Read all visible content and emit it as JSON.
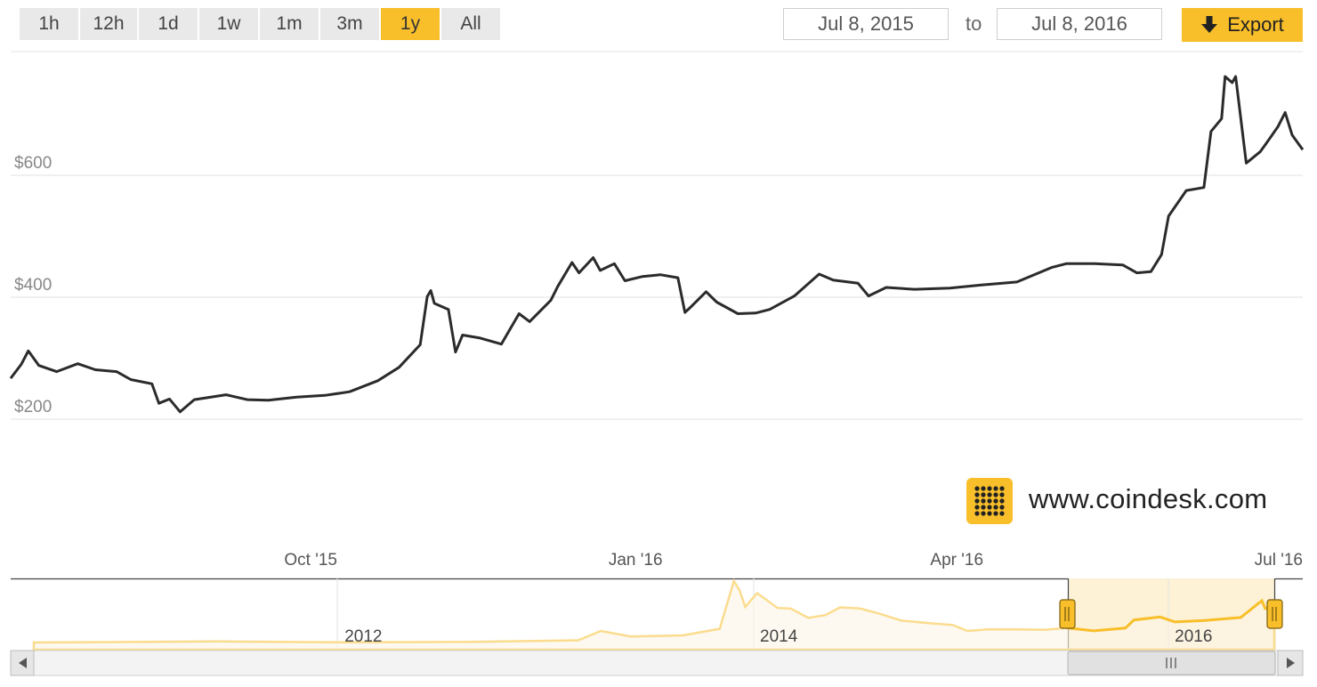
{
  "ranges": [
    {
      "label": "1h",
      "active": false
    },
    {
      "label": "12h",
      "active": false
    },
    {
      "label": "1d",
      "active": false
    },
    {
      "label": "1w",
      "active": false
    },
    {
      "label": "1m",
      "active": false
    },
    {
      "label": "3m",
      "active": false
    },
    {
      "label": "1y",
      "active": true
    },
    {
      "label": "All",
      "active": false
    }
  ],
  "date_from": "Jul 8, 2015",
  "date_to_label": "to",
  "date_to": "Jul 8, 2016",
  "export_label": "Export",
  "watermark": "www.coindesk.com",
  "colors": {
    "accent": "#f8bf2a",
    "line": "#2b2b2b",
    "grid": "#e0e0e0",
    "nav_fill": "#fdf1d6"
  },
  "icons": {
    "export": "download-arrow-icon",
    "logo": "coindesk-logo-icon",
    "left": "scroll-left-icon",
    "right": "scroll-right-icon"
  },
  "chart_data": {
    "type": "line",
    "x_range": [
      "2015-07-08",
      "2016-07-08"
    ],
    "ylim": [
      100,
      800
    ],
    "yticks": [
      {
        "label": "$200",
        "value": 200
      },
      {
        "label": "$400",
        "value": 400
      },
      {
        "label": "$600",
        "value": 600
      }
    ],
    "xticks": [
      {
        "label": "Oct '15",
        "date": "2015-10-01"
      },
      {
        "label": "Jan '16",
        "date": "2016-01-01"
      },
      {
        "label": "Apr '16",
        "date": "2016-04-01"
      },
      {
        "label": "Jul '16",
        "date": "2016-07-01"
      }
    ],
    "grid": true,
    "series": [
      {
        "values": [
          [
            "2015-07-08",
            267
          ],
          [
            "2015-07-11",
            290
          ],
          [
            "2015-07-13",
            312
          ],
          [
            "2015-07-16",
            288
          ],
          [
            "2015-07-21",
            278
          ],
          [
            "2015-07-27",
            291
          ],
          [
            "2015-08-01",
            281
          ],
          [
            "2015-08-07",
            278
          ],
          [
            "2015-08-11",
            265
          ],
          [
            "2015-08-17",
            258
          ],
          [
            "2015-08-19",
            226
          ],
          [
            "2015-08-22",
            233
          ],
          [
            "2015-08-25",
            212
          ],
          [
            "2015-08-29",
            232
          ],
          [
            "2015-09-07",
            240
          ],
          [
            "2015-09-13",
            232
          ],
          [
            "2015-09-19",
            231
          ],
          [
            "2015-09-27",
            236
          ],
          [
            "2015-10-05",
            239
          ],
          [
            "2015-10-12",
            245
          ],
          [
            "2015-10-20",
            263
          ],
          [
            "2015-10-26",
            285
          ],
          [
            "2015-11-01",
            322
          ],
          [
            "2015-11-03",
            401
          ],
          [
            "2015-11-04",
            411
          ],
          [
            "2015-11-05",
            390
          ],
          [
            "2015-11-09",
            380
          ],
          [
            "2015-11-11",
            310
          ],
          [
            "2015-11-13",
            338
          ],
          [
            "2015-11-18",
            333
          ],
          [
            "2015-11-24",
            323
          ],
          [
            "2015-11-29",
            373
          ],
          [
            "2015-12-02",
            360
          ],
          [
            "2015-12-08",
            395
          ],
          [
            "2015-12-10",
            418
          ],
          [
            "2015-12-14",
            457
          ],
          [
            "2015-12-16",
            440
          ],
          [
            "2015-12-20",
            465
          ],
          [
            "2015-12-22",
            444
          ],
          [
            "2015-12-26",
            455
          ],
          [
            "2015-12-29",
            427
          ],
          [
            "2016-01-03",
            434
          ],
          [
            "2016-01-08",
            437
          ],
          [
            "2016-01-13",
            432
          ],
          [
            "2016-01-15",
            375
          ],
          [
            "2016-01-17",
            386
          ],
          [
            "2016-01-21",
            409
          ],
          [
            "2016-01-24",
            392
          ],
          [
            "2016-01-30",
            373
          ],
          [
            "2016-02-04",
            374
          ],
          [
            "2016-02-08",
            380
          ],
          [
            "2016-02-15",
            402
          ],
          [
            "2016-02-22",
            438
          ],
          [
            "2016-02-26",
            428
          ],
          [
            "2016-03-04",
            423
          ],
          [
            "2016-03-07",
            402
          ],
          [
            "2016-03-12",
            416
          ],
          [
            "2016-03-20",
            413
          ],
          [
            "2016-03-30",
            415
          ],
          [
            "2016-04-08",
            420
          ],
          [
            "2016-04-18",
            425
          ],
          [
            "2016-04-28",
            449
          ],
          [
            "2016-05-02",
            455
          ],
          [
            "2016-05-10",
            455
          ],
          [
            "2016-05-18",
            453
          ],
          [
            "2016-05-22",
            440
          ],
          [
            "2016-05-26",
            442
          ],
          [
            "2016-05-29",
            470
          ],
          [
            "2016-05-31",
            533
          ],
          [
            "2016-06-05",
            575
          ],
          [
            "2016-06-10",
            580
          ],
          [
            "2016-06-12",
            672
          ],
          [
            "2016-06-15",
            693
          ],
          [
            "2016-06-16",
            762
          ],
          [
            "2016-06-18",
            752
          ],
          [
            "2016-06-19",
            762
          ],
          [
            "2016-06-22",
            620
          ],
          [
            "2016-06-26",
            639
          ],
          [
            "2016-06-28",
            655
          ],
          [
            "2016-07-01",
            680
          ],
          [
            "2016-07-03",
            703
          ],
          [
            "2016-07-05",
            666
          ],
          [
            "2016-07-07",
            650
          ],
          [
            "2016-07-08",
            642
          ]
        ]
      }
    ]
  },
  "navigator": {
    "x_range": [
      "2010-07-17",
      "2016-07-08"
    ],
    "ylim": [
      0,
      1200
    ],
    "year_labels": [
      {
        "label": "2012",
        "date": "2012-01-01"
      },
      {
        "label": "2014",
        "date": "2014-01-01"
      },
      {
        "label": "2016",
        "date": "2016-01-01"
      }
    ],
    "selected_range": [
      "2015-07-08",
      "2016-07-08"
    ],
    "series": [
      [
        "2010-07-17",
        0.1
      ],
      [
        "2011-06-10",
        20
      ],
      [
        "2012-01-01",
        5
      ],
      [
        "2012-08-15",
        10
      ],
      [
        "2013-03-01",
        40
      ],
      [
        "2013-04-10",
        210
      ],
      [
        "2013-06-01",
        110
      ],
      [
        "2013-09-01",
        130
      ],
      [
        "2013-11-05",
        250
      ],
      [
        "2013-11-30",
        1120
      ],
      [
        "2013-12-10",
        950
      ],
      [
        "2013-12-20",
        650
      ],
      [
        "2014-01-10",
        900
      ],
      [
        "2014-02-15",
        630
      ],
      [
        "2014-03-10",
        620
      ],
      [
        "2014-04-10",
        450
      ],
      [
        "2014-05-10",
        500
      ],
      [
        "2014-06-05",
        640
      ],
      [
        "2014-07-10",
        620
      ],
      [
        "2014-08-15",
        520
      ],
      [
        "2014-09-20",
        400
      ],
      [
        "2014-11-10",
        350
      ],
      [
        "2014-12-20",
        320
      ],
      [
        "2015-01-15",
        210
      ],
      [
        "2015-02-20",
        240
      ],
      [
        "2015-04-10",
        240
      ],
      [
        "2015-06-01",
        230
      ],
      [
        "2015-07-08",
        267
      ],
      [
        "2015-08-25",
        212
      ],
      [
        "2015-10-20",
        263
      ],
      [
        "2015-11-04",
        411
      ],
      [
        "2015-12-20",
        465
      ],
      [
        "2016-01-15",
        375
      ],
      [
        "2016-03-07",
        402
      ],
      [
        "2016-05-10",
        455
      ],
      [
        "2016-06-16",
        762
      ],
      [
        "2016-06-22",
        620
      ],
      [
        "2016-07-08",
        642
      ]
    ]
  }
}
